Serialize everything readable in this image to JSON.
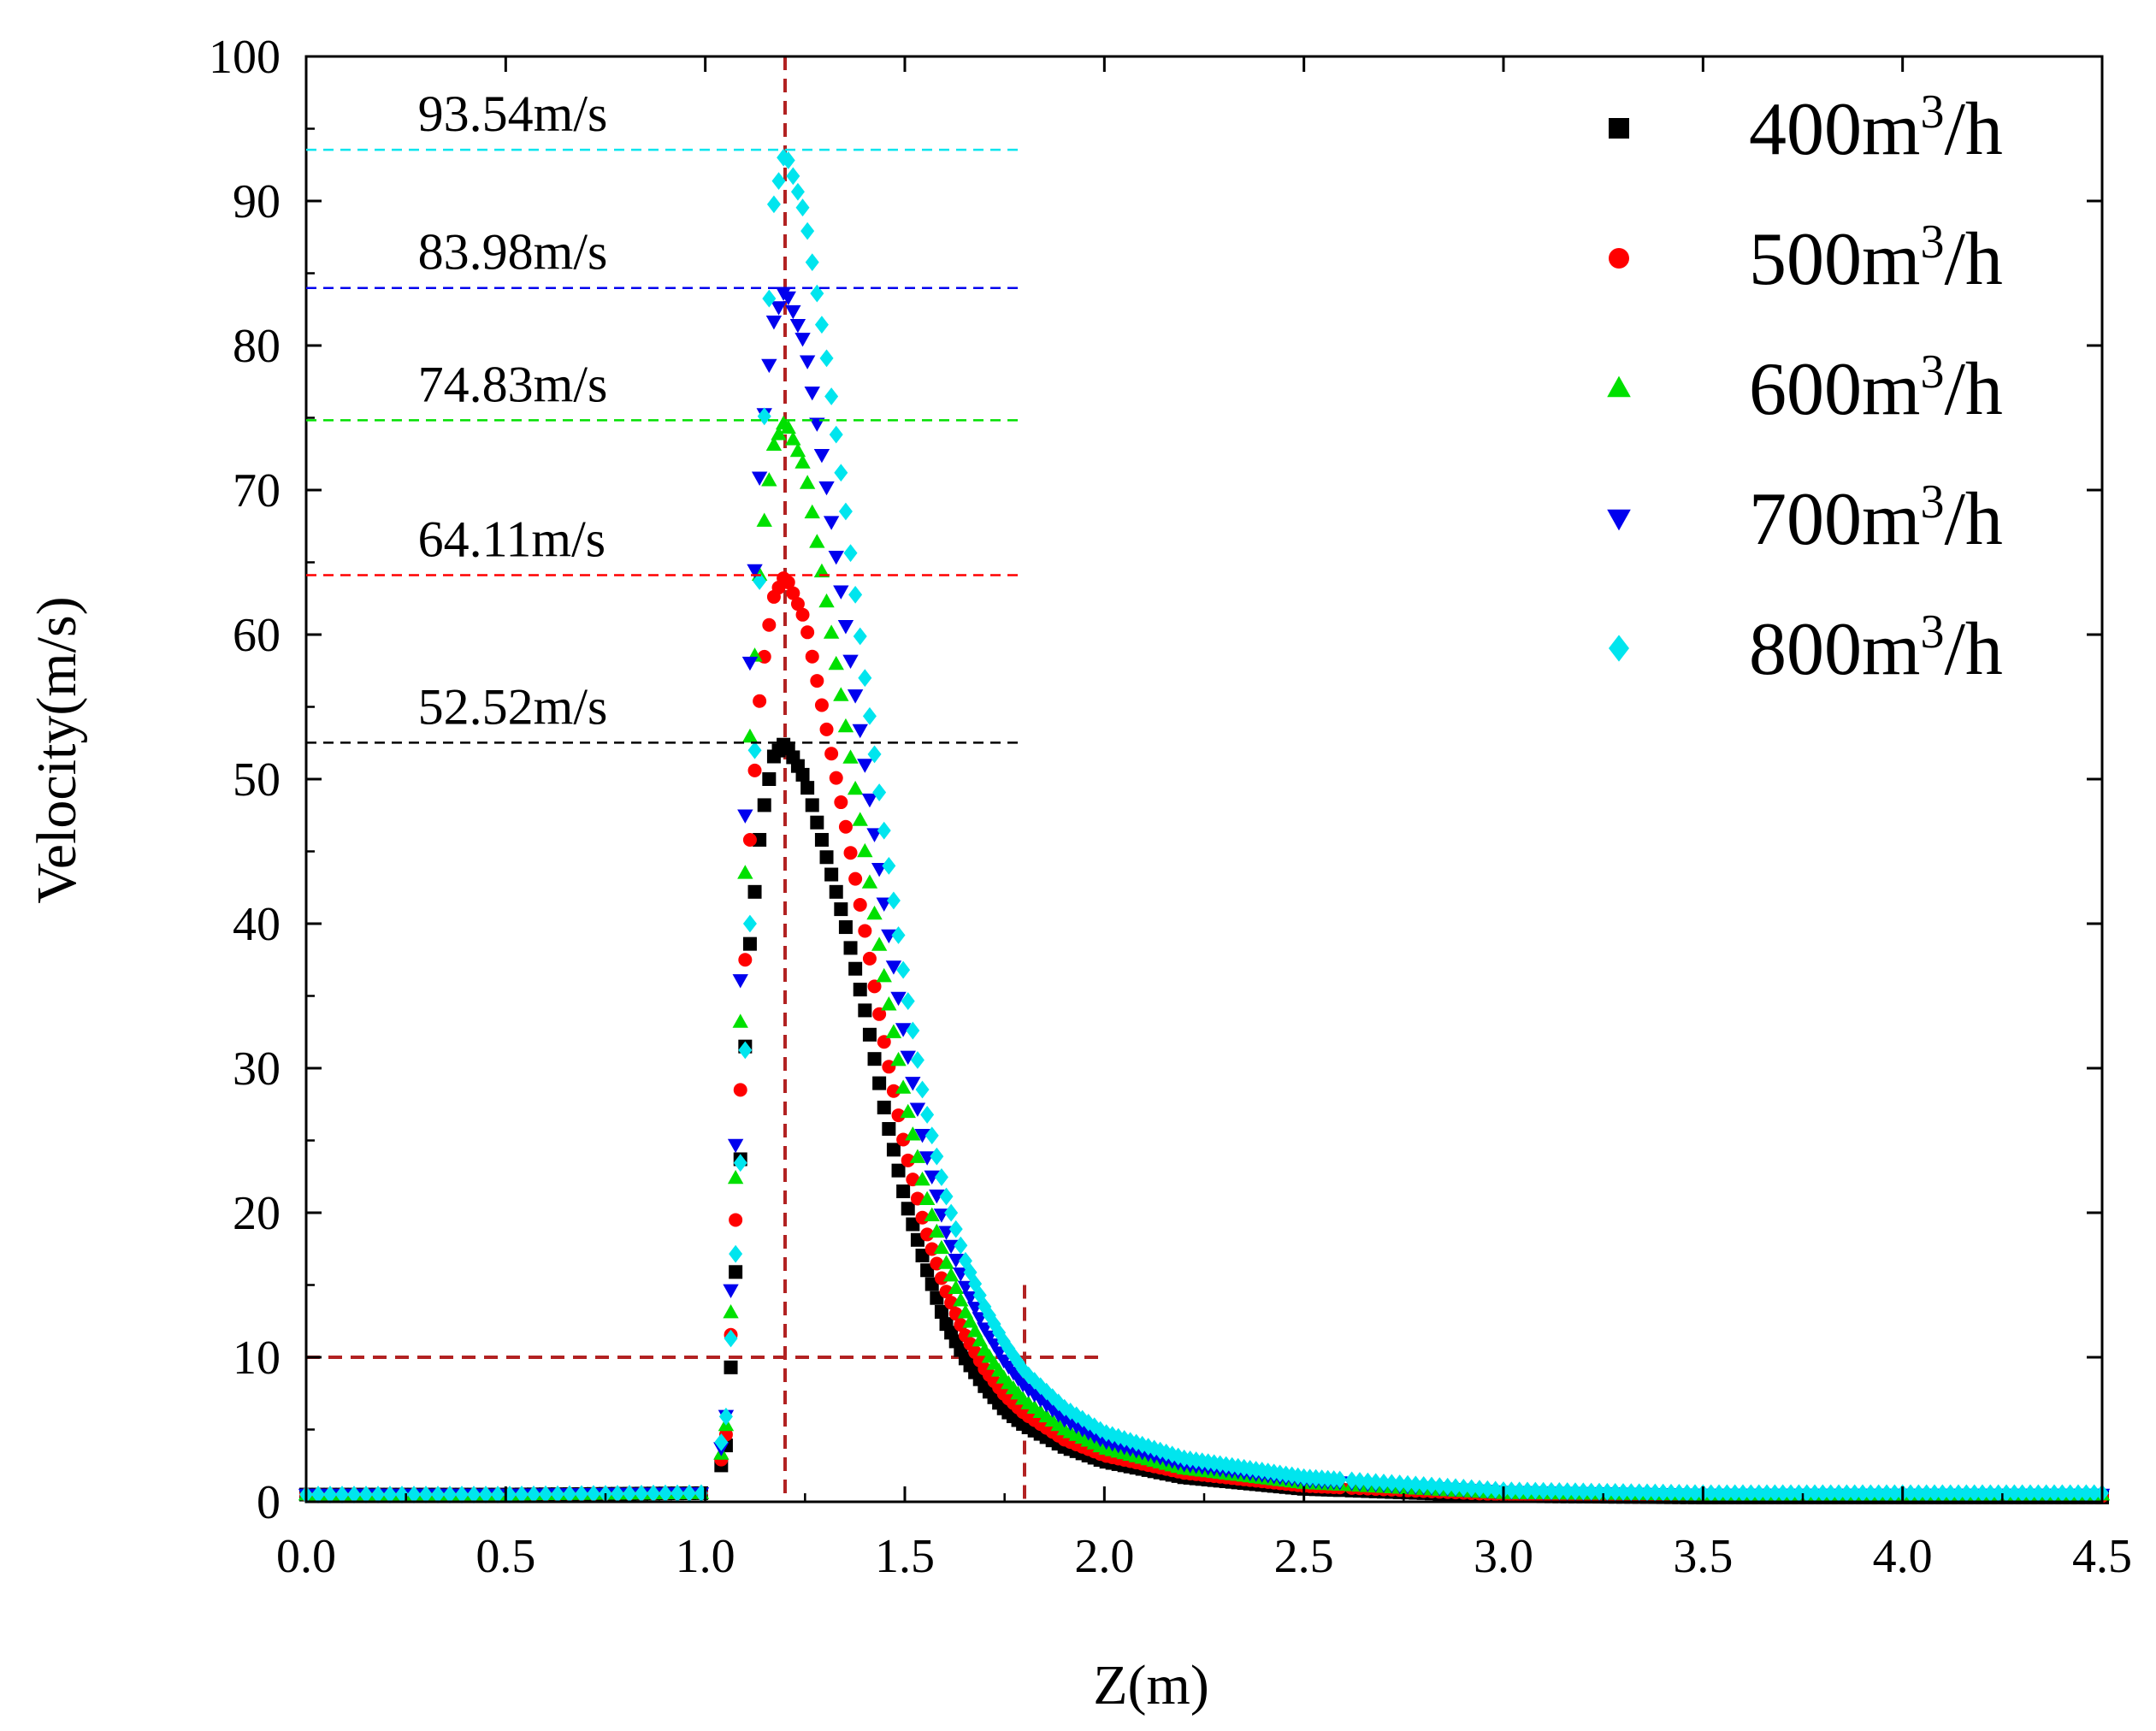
{
  "chart_data": {
    "type": "scatter",
    "title": "",
    "xlabel": "Z(m)",
    "ylabel": "Velocity(m/s)",
    "xlim": [
      0,
      4.5
    ],
    "ylim": [
      0,
      100
    ],
    "xticks": [
      "0.0",
      "0.5",
      "1.0",
      "1.5",
      "2.0",
      "2.5",
      "3.0",
      "3.5",
      "4.0",
      "4.5"
    ],
    "yticks": [
      "0",
      "10",
      "20",
      "30",
      "40",
      "50",
      "60",
      "70",
      "80",
      "90",
      "100"
    ],
    "legend_position": "top-right",
    "series": [
      {
        "name": "400m3/h",
        "label_base": "400m",
        "label_sup": "3",
        "label_unit": "/h",
        "color": "#000000",
        "marker": "square",
        "peak": 52.52,
        "peak_label": "52.52m/s",
        "points": [
          [
            0,
            0.5
          ],
          [
            0.5,
            0.5
          ],
          [
            1.0,
            0.6
          ],
          [
            1.05,
            3.0
          ],
          [
            1.07,
            12.0
          ],
          [
            1.09,
            25.0
          ],
          [
            1.11,
            38.0
          ],
          [
            1.14,
            47.0
          ],
          [
            1.17,
            51.5
          ],
          [
            1.2,
            52.52
          ],
          [
            1.25,
            50.0
          ],
          [
            1.3,
            45.0
          ],
          [
            1.35,
            40.0
          ],
          [
            1.4,
            34.0
          ],
          [
            1.45,
            27.0
          ],
          [
            1.5,
            21.0
          ],
          [
            1.55,
            16.5
          ],
          [
            1.6,
            12.5
          ],
          [
            1.65,
            10.0
          ],
          [
            1.7,
            8.0
          ],
          [
            1.75,
            6.4
          ],
          [
            1.8,
            5.3
          ],
          [
            1.9,
            3.8
          ],
          [
            2.0,
            2.8
          ],
          [
            2.2,
            1.7
          ],
          [
            2.5,
            0.9
          ],
          [
            3.0,
            0.4
          ],
          [
            3.5,
            0.3
          ],
          [
            4.0,
            0.3
          ],
          [
            4.5,
            0.3
          ]
        ]
      },
      {
        "name": "500m3/h",
        "label_base": "500m",
        "label_sup": "3",
        "label_unit": "/h",
        "color": "#ff0000",
        "marker": "circle",
        "peak": 64.11,
        "peak_label": "64.11m/s",
        "points": [
          [
            0,
            0.5
          ],
          [
            0.5,
            0.5
          ],
          [
            1.0,
            0.6
          ],
          [
            1.05,
            3.5
          ],
          [
            1.07,
            15.0
          ],
          [
            1.09,
            30.0
          ],
          [
            1.11,
            45.0
          ],
          [
            1.14,
            57.0
          ],
          [
            1.17,
            62.5
          ],
          [
            1.2,
            64.11
          ],
          [
            1.25,
            61.0
          ],
          [
            1.3,
            54.0
          ],
          [
            1.35,
            47.0
          ],
          [
            1.4,
            39.5
          ],
          [
            1.45,
            31.5
          ],
          [
            1.5,
            24.5
          ],
          [
            1.55,
            19.0
          ],
          [
            1.6,
            14.8
          ],
          [
            1.65,
            11.6
          ],
          [
            1.7,
            9.2
          ],
          [
            1.75,
            7.4
          ],
          [
            1.8,
            6.1
          ],
          [
            1.9,
            4.3
          ],
          [
            2.0,
            3.2
          ],
          [
            2.2,
            2.0
          ],
          [
            2.5,
            1.1
          ],
          [
            3.0,
            0.5
          ],
          [
            3.5,
            0.4
          ],
          [
            4.0,
            0.4
          ],
          [
            4.5,
            0.4
          ]
        ]
      },
      {
        "name": "600m3/h",
        "label_base": "600m",
        "label_sup": "3",
        "label_unit": "/h",
        "color": "#00e000",
        "marker": "triangle-up",
        "peak": 74.83,
        "peak_label": "74.83m/s",
        "points": [
          [
            0,
            0.5
          ],
          [
            0.5,
            0.5
          ],
          [
            1.0,
            0.6
          ],
          [
            1.05,
            4.0
          ],
          [
            1.07,
            17.0
          ],
          [
            1.09,
            35.0
          ],
          [
            1.11,
            52.0
          ],
          [
            1.14,
            66.0
          ],
          [
            1.17,
            73.0
          ],
          [
            1.2,
            74.83
          ],
          [
            1.25,
            71.5
          ],
          [
            1.3,
            63.0
          ],
          [
            1.35,
            54.0
          ],
          [
            1.4,
            45.0
          ],
          [
            1.45,
            36.0
          ],
          [
            1.5,
            28.0
          ],
          [
            1.55,
            21.5
          ],
          [
            1.6,
            16.8
          ],
          [
            1.65,
            13.2
          ],
          [
            1.7,
            10.5
          ],
          [
            1.75,
            8.5
          ],
          [
            1.8,
            7.0
          ],
          [
            1.9,
            5.0
          ],
          [
            2.0,
            3.7
          ],
          [
            2.2,
            2.3
          ],
          [
            2.5,
            1.3
          ],
          [
            3.0,
            0.6
          ],
          [
            3.5,
            0.5
          ],
          [
            4.0,
            0.5
          ],
          [
            4.5,
            0.5
          ]
        ]
      },
      {
        "name": "700m3/h",
        "label_base": "700m",
        "label_sup": "3",
        "label_unit": "/h",
        "color": "#0000ee",
        "marker": "triangle-down",
        "peak": 83.98,
        "peak_label": "83.98m/s",
        "points": [
          [
            0,
            0.5
          ],
          [
            0.5,
            0.5
          ],
          [
            1.0,
            0.6
          ],
          [
            1.05,
            4.5
          ],
          [
            1.07,
            19.0
          ],
          [
            1.09,
            38.0
          ],
          [
            1.11,
            57.0
          ],
          [
            1.14,
            73.0
          ],
          [
            1.17,
            81.5
          ],
          [
            1.2,
            83.98
          ],
          [
            1.25,
            80.0
          ],
          [
            1.3,
            71.0
          ],
          [
            1.35,
            61.0
          ],
          [
            1.4,
            51.0
          ],
          [
            1.45,
            41.0
          ],
          [
            1.5,
            32.0
          ],
          [
            1.55,
            24.5
          ],
          [
            1.6,
            19.0
          ],
          [
            1.65,
            15.0
          ],
          [
            1.7,
            12.0
          ],
          [
            1.75,
            9.7
          ],
          [
            1.8,
            8.0
          ],
          [
            1.9,
            5.7
          ],
          [
            2.0,
            4.2
          ],
          [
            2.2,
            2.6
          ],
          [
            2.5,
            1.5
          ],
          [
            3.0,
            0.7
          ],
          [
            3.5,
            0.5
          ],
          [
            4.0,
            0.5
          ],
          [
            4.5,
            0.5
          ]
        ]
      },
      {
        "name": "800m3/h",
        "label_base": "800m",
        "label_sup": "3",
        "label_unit": "/h",
        "color": "#00e5ee",
        "marker": "diamond",
        "peak": 93.54,
        "peak_label": "93.54m/s",
        "points": [
          [
            0,
            0.5
          ],
          [
            0.5,
            0.5
          ],
          [
            1.0,
            0.6
          ],
          [
            1.05,
            5.0
          ],
          [
            1.07,
            14.0
          ],
          [
            1.09,
            24.5
          ],
          [
            1.11,
            38.0
          ],
          [
            1.13,
            58.0
          ],
          [
            1.15,
            77.0
          ],
          [
            1.17,
            89.5
          ],
          [
            1.2,
            93.54
          ],
          [
            1.25,
            89.0
          ],
          [
            1.3,
            80.0
          ],
          [
            1.35,
            69.0
          ],
          [
            1.4,
            57.0
          ],
          [
            1.45,
            46.0
          ],
          [
            1.5,
            36.0
          ],
          [
            1.55,
            27.5
          ],
          [
            1.6,
            21.5
          ],
          [
            1.65,
            16.8
          ],
          [
            1.7,
            13.5
          ],
          [
            1.75,
            11.0
          ],
          [
            1.8,
            9.0
          ],
          [
            1.9,
            6.5
          ],
          [
            2.0,
            4.8
          ],
          [
            2.2,
            3.0
          ],
          [
            2.5,
            1.7
          ],
          [
            3.0,
            0.8
          ],
          [
            3.5,
            0.6
          ],
          [
            4.0,
            0.6
          ],
          [
            4.5,
            0.6
          ]
        ]
      }
    ],
    "reference_lines": [
      {
        "type": "vertical",
        "x": 1.2,
        "color": "#b22222"
      },
      {
        "type": "vertical",
        "x": 1.8,
        "y_to": 15,
        "color": "#b22222"
      },
      {
        "type": "horizontal",
        "y": 10,
        "x_to": 2.0,
        "color": "#b22222"
      }
    ]
  }
}
